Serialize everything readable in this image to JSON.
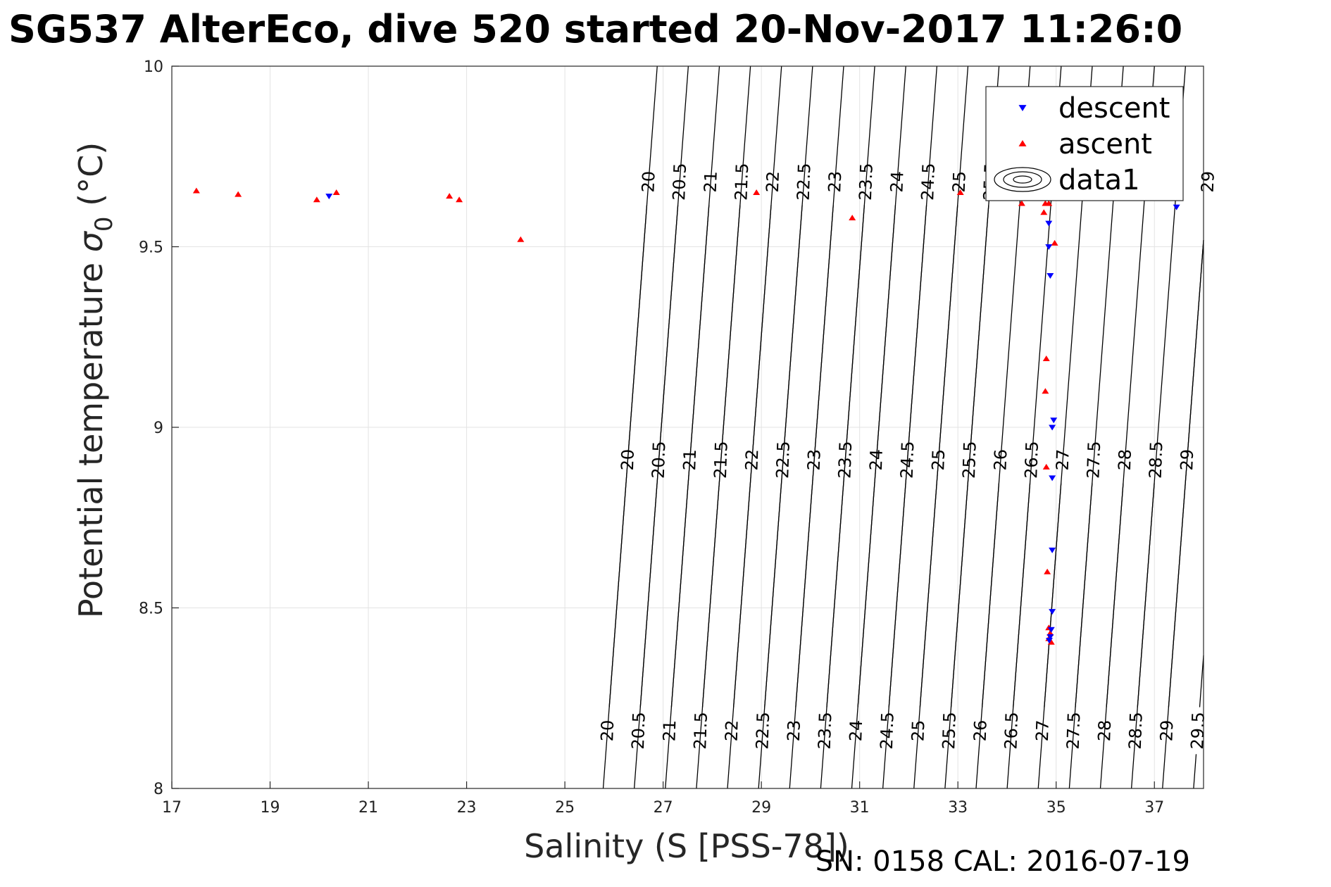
{
  "chart_data": {
    "type": "scatter",
    "title": "SG537 AlterEco, dive 520 started 20-Nov-2017 11:26:0",
    "xlabel": "Salinity (S [PSS-78])",
    "ylabel_main": "Potential temperature ",
    "ylabel_sigma": "σ",
    "ylabel_sub": "0",
    "ylabel_unit": " (°C)",
    "footer": "SN: 0158  CAL: 2016-07-19",
    "xlim": [
      17,
      38
    ],
    "ylim": [
      8,
      10
    ],
    "xticks": [
      17,
      19,
      21,
      23,
      25,
      27,
      29,
      31,
      33,
      35,
      37
    ],
    "yticks": [
      8,
      8.5,
      9,
      9.5,
      10
    ],
    "grid": true,
    "legend_position": "top-right",
    "series": [
      {
        "name": "descent",
        "marker": "triangle-down",
        "color": "#0000ff",
        "points": [
          [
            20.2,
            9.64
          ],
          [
            34.85,
            9.565
          ],
          [
            34.85,
            9.5
          ],
          [
            34.88,
            9.42
          ],
          [
            34.95,
            9.02
          ],
          [
            34.92,
            9.0
          ],
          [
            34.92,
            8.86
          ],
          [
            34.92,
            8.66
          ],
          [
            34.92,
            8.49
          ],
          [
            34.9,
            8.44
          ],
          [
            34.88,
            8.42
          ],
          [
            34.86,
            8.41
          ],
          [
            37.45,
            9.61
          ]
        ]
      },
      {
        "name": "ascent",
        "marker": "triangle-up",
        "color": "#ff0000",
        "points": [
          [
            17.5,
            9.655
          ],
          [
            18.35,
            9.645
          ],
          [
            19.95,
            9.63
          ],
          [
            20.35,
            9.65
          ],
          [
            22.65,
            9.64
          ],
          [
            22.85,
            9.63
          ],
          [
            24.1,
            9.52
          ],
          [
            28.9,
            9.65
          ],
          [
            30.85,
            9.58
          ],
          [
            33.05,
            9.65
          ],
          [
            34.3,
            9.62
          ],
          [
            34.78,
            9.62
          ],
          [
            34.85,
            9.62
          ],
          [
            34.75,
            9.595
          ],
          [
            34.97,
            9.51
          ],
          [
            34.8,
            9.19
          ],
          [
            34.78,
            9.1
          ],
          [
            34.8,
            8.89
          ],
          [
            34.82,
            8.6
          ],
          [
            34.85,
            8.445
          ],
          [
            34.88,
            8.43
          ],
          [
            34.85,
            8.415
          ],
          [
            34.9,
            8.405
          ]
        ]
      },
      {
        "name": "data1",
        "type": "contour",
        "color": "#000000",
        "levels": [
          "20",
          "20.5",
          "21",
          "21.5",
          "22",
          "22.5",
          "23",
          "23.5",
          "24",
          "24.5",
          "25",
          "25.5",
          "26",
          "26.5",
          "27",
          "27.5",
          "28",
          "28.5",
          "29",
          "29.5"
        ],
        "top_row_levels": [
          "20",
          "20.5",
          "21",
          "21.5",
          "22",
          "22.5",
          "23",
          "23.5",
          "24",
          "24.5",
          "25",
          "25.5",
          "29"
        ],
        "mid_row_levels": [
          "20",
          "20.5",
          "21",
          "21.5",
          "22",
          "22.5",
          "23",
          "23.5",
          "24",
          "24.5",
          "25",
          "25.5",
          "26",
          "26.5",
          "27",
          "27.5",
          "28",
          "28.5",
          "29"
        ],
        "bottom_row_levels": [
          "20",
          "20.5",
          "21",
          "21.5",
          "22",
          "22.5",
          "23",
          "23.5",
          "24",
          "24.5",
          "25",
          "25.5",
          "26",
          "26.5",
          "27",
          "27.5",
          "28",
          "28.5",
          "29",
          "29.5"
        ]
      }
    ]
  }
}
